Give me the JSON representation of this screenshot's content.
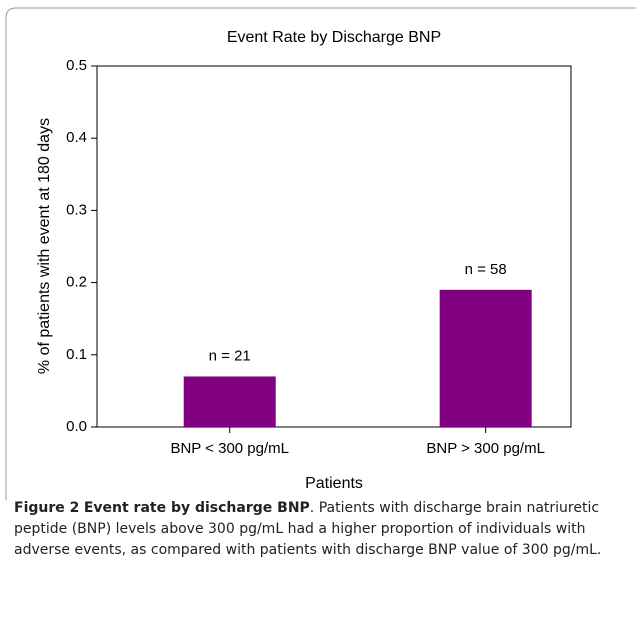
{
  "chart_data": {
    "type": "bar",
    "title": "Event Rate by Discharge BNP",
    "categories": [
      "BNP < 300 pg/mL",
      "BNP > 300 pg/mL"
    ],
    "values": [
      0.07,
      0.19
    ],
    "annotations": [
      "n = 21",
      "n = 58"
    ],
    "color": "#800080",
    "xlabel": "Patients",
    "ylabel": "% of patients with event at 180 days",
    "ylim": [
      0,
      0.5
    ],
    "yticks": [
      {
        "value": 0,
        "label": "0.0"
      },
      0.1,
      0.2,
      0.3,
      0.4,
      0.5
    ],
    "grid": false
  },
  "caption": {
    "label": "Figure 2",
    "title": "Event rate by discharge BNP",
    "text": ". Patients with discharge brain natriuretic peptide (BNP) levels above 300 pg/mL had a higher proportion of individuals with adverse events, as compared with patients with discharge BNP value of 300 pg/mL."
  }
}
